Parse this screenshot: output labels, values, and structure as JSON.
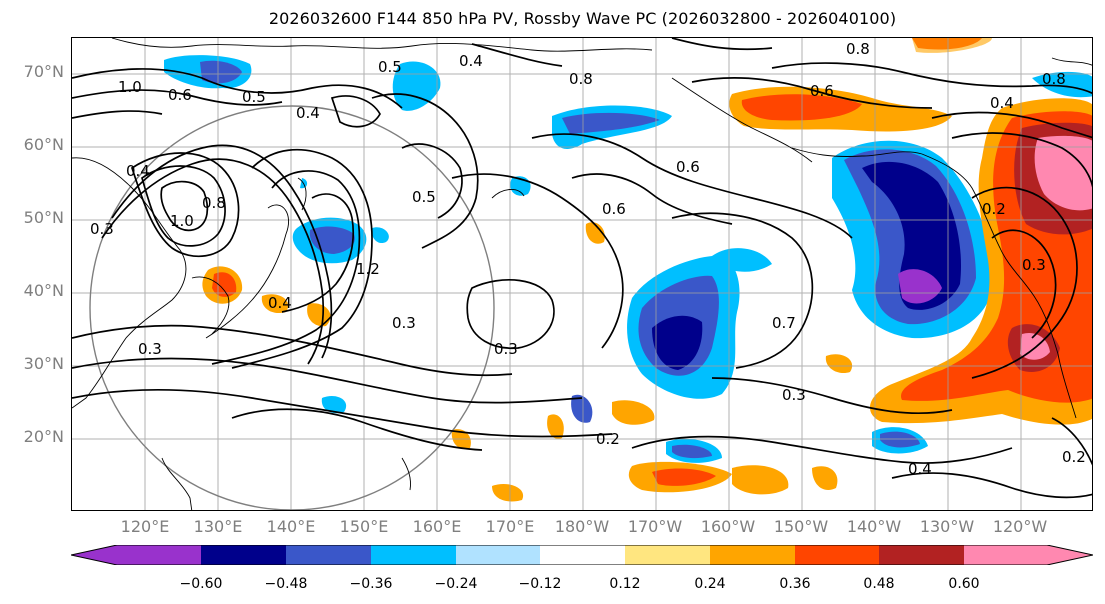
{
  "title": "2026032600 F144 850 hPa PV, Rossby Wave PC (2026032800 - 2026040100)",
  "lat_labels": [
    "70°N",
    "60°N",
    "50°N",
    "40°N",
    "30°N",
    "20°N"
  ],
  "lon_labels": [
    "120°E",
    "130°E",
    "140°E",
    "150°E",
    "160°E",
    "170°E",
    "180°W",
    "170°W",
    "160°W",
    "150°W",
    "140°W",
    "130°W",
    "120°W"
  ],
  "colorbar": {
    "tick_labels": [
      "−0.60",
      "−0.48",
      "−0.36",
      "−0.24",
      "−0.12",
      "0.12",
      "0.24",
      "0.36",
      "0.48",
      "0.60"
    ],
    "colors": [
      "#9932cc",
      "#00008b",
      "#3a57c9",
      "#00bfff",
      "#b0e2ff",
      "#ffffff",
      "#ffe680",
      "#ffa500",
      "#ff4500",
      "#b22222",
      "#ff88b0"
    ]
  },
  "contour_labels": [
    "0.8",
    "0.4",
    "0.8",
    "1.0",
    "0.5",
    "0.6",
    "0.5",
    "0.4",
    "0.8",
    "0.6",
    "0.4",
    "0.4",
    "1.0",
    "0.8",
    "0.3",
    "0.5",
    "0.6",
    "0.6",
    "0.2",
    "1.2",
    "0.4",
    "0.3",
    "0.3",
    "0.3",
    "0.7",
    "0.3",
    "0.2",
    "0.4",
    "0.2",
    "0.3"
  ]
}
